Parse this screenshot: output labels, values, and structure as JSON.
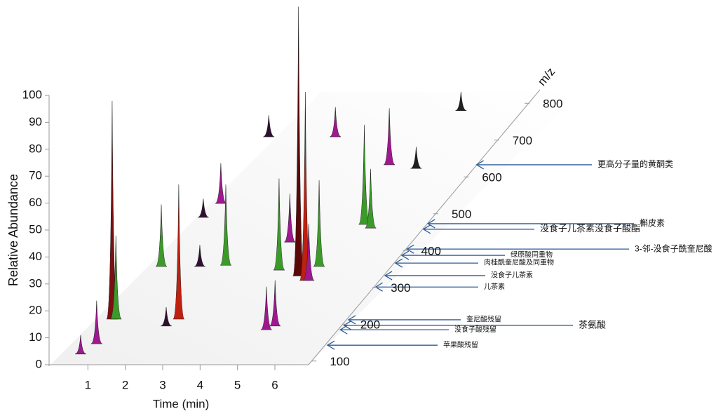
{
  "chart_data": {
    "type": "3d-peaks",
    "xlabel": "Time (min)",
    "ylabel": "Relative Abundance",
    "zlabel": "m/z",
    "xlim": [
      0,
      6.9
    ],
    "ylim": [
      0,
      100
    ],
    "zlim": [
      90,
      830
    ],
    "xticks": [
      1,
      2,
      3,
      4,
      5,
      6
    ],
    "yticks": [
      0,
      10,
      20,
      30,
      40,
      50,
      60,
      70,
      80,
      90,
      100
    ],
    "zticks": [
      100,
      200,
      300,
      400,
      500,
      600,
      700,
      800
    ],
    "peaks": [
      {
        "time": 0.64,
        "mz": 214,
        "height": 81,
        "color": "#7a1010"
      },
      {
        "time": 0.74,
        "mz": 214,
        "height": 31,
        "color": "#3c9a2a"
      },
      {
        "time": 0.77,
        "mz": 147,
        "height": 16,
        "color": "#a01890"
      },
      {
        "time": 0.57,
        "mz": 119,
        "height": 7,
        "color": "#a01890"
      },
      {
        "time": 2.42,
        "mz": 214,
        "height": 50,
        "color": "#c02010"
      },
      {
        "time": 0.79,
        "mz": 357,
        "height": 23,
        "color": "#3c9a2a"
      },
      {
        "time": 4.67,
        "mz": 331,
        "height": 100,
        "color": "#5a0808"
      },
      {
        "time": 4.95,
        "mz": 319,
        "height": 70,
        "color": "#c02010"
      },
      {
        "time": 4.02,
        "mz": 347,
        "height": 34,
        "color": "#3c9a2a"
      },
      {
        "time": 3.69,
        "mz": 423,
        "height": 18,
        "color": "#a01890"
      },
      {
        "time": 5.01,
        "mz": 357,
        "height": 32,
        "color": "#3c9a2a"
      },
      {
        "time": 2.49,
        "mz": 360,
        "height": 30,
        "color": "#3c9a2a"
      },
      {
        "time": 0.99,
        "mz": 528,
        "height": 15,
        "color": "#a01890"
      },
      {
        "time": 5.29,
        "mz": 471,
        "height": 37,
        "color": "#3c9a2a"
      },
      {
        "time": 5.54,
        "mz": 461,
        "height": 22,
        "color": "#3c9a2a"
      },
      {
        "time": 4.64,
        "mz": 633,
        "height": 21,
        "color": "#a01890"
      },
      {
        "time": 2.58,
        "mz": 709,
        "height": 11,
        "color": "#a01890"
      },
      {
        "time": 0.8,
        "mz": 709,
        "height": 8,
        "color": "#301030"
      },
      {
        "time": 5.36,
        "mz": 780,
        "height": 7,
        "color": "#202020"
      },
      {
        "time": 5.0,
        "mz": 185,
        "height": 16,
        "color": "#a01890"
      },
      {
        "time": 5.15,
        "mz": 195,
        "height": 17,
        "color": "#a01890"
      },
      {
        "time": 2.24,
        "mz": 195,
        "height": 7,
        "color": "#301030"
      },
      {
        "time": 1.82,
        "mz": 357,
        "height": 8,
        "color": "#301030"
      },
      {
        "time": 5.44,
        "mz": 623,
        "height": 8,
        "color": "#202020"
      },
      {
        "time": 0.83,
        "mz": 490,
        "height": 7,
        "color": "#301030"
      },
      {
        "time": 5.04,
        "mz": 319,
        "height": 21,
        "color": "#a01890"
      }
    ],
    "annotations": [
      {
        "label": "苹果酸残留",
        "mz": 143
      },
      {
        "label": "没食子酸残留",
        "mz": 185
      },
      {
        "label": "奎尼酸残留",
        "mz": 212
      },
      {
        "label": "茶氨酸",
        "mz": 197
      },
      {
        "label": "儿茶素",
        "mz": 301
      },
      {
        "label": "没食子儿茶素",
        "mz": 332
      },
      {
        "label": "肉桂酰奎尼酸及同重物",
        "mz": 366
      },
      {
        "label": "绿原酸同重物",
        "mz": 387
      },
      {
        "label": "3-邻-没食子酰奎尼酸",
        "mz": 404
      },
      {
        "label": "没食子儿茶素没食子酸酯",
        "mz": 458
      },
      {
        "label": "槲皮素",
        "mz": 473
      },
      {
        "label": "更高分子量的黄酮类",
        "mz": 633
      }
    ]
  }
}
